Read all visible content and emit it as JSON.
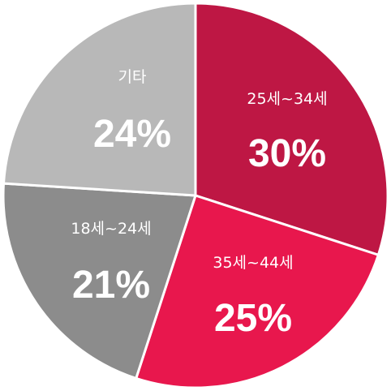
{
  "chart_data": {
    "type": "pie",
    "categories": [
      "25세~34세",
      "35세~44세",
      "18세~24세",
      "기타"
    ],
    "values": [
      30,
      25,
      21,
      24
    ],
    "value_labels": [
      "30%",
      "25%",
      "21%",
      "24%"
    ],
    "colors": [
      "#be1744",
      "#e8174d",
      "#8c8c8c",
      "#b8b8b8"
    ],
    "start_angle_deg": 0,
    "direction": "clockwise",
    "legend": "none"
  }
}
